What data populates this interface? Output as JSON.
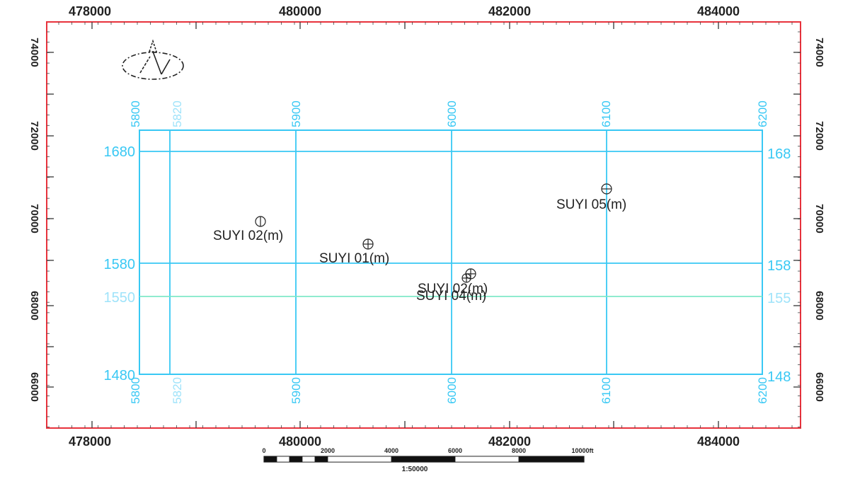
{
  "map": {
    "x_axis": {
      "ticks": [
        "478000",
        "480000",
        "482000",
        "484000"
      ],
      "values": [
        478000,
        480000,
        482000,
        484000
      ]
    },
    "y_axis": {
      "ticks": [
        "66000",
        "68000",
        "70000",
        "72000",
        "74000"
      ],
      "values": [
        66000,
        68000,
        70000,
        72000,
        74000
      ]
    },
    "survey": {
      "crosslines": {
        "values": [
          5800,
          5820,
          5900,
          6000,
          6100,
          6200
        ],
        "labels": [
          "5800",
          "5820",
          "5900",
          "6000",
          "6100",
          "6200"
        ]
      },
      "inlines": {
        "left_labels": [
          "1680",
          "1580",
          "1550",
          "1480"
        ],
        "right_labels": [
          "168",
          "158",
          "155",
          "148"
        ]
      }
    },
    "wells": [
      {
        "name": "SUYI 02(m)",
        "symbol": "circle-vertical"
      },
      {
        "name": "SUYI 01(m)",
        "symbol": "circle-cross"
      },
      {
        "name": "SUYI 05(m)",
        "symbol": "circle-horizontal"
      },
      {
        "name": "SUYI 02(m)",
        "symbol": "circle-cross"
      },
      {
        "name": "SUYI 04(m)",
        "symbol": "circle-cross"
      }
    ],
    "scale_bar": {
      "tick_labels": [
        "0",
        "2000",
        "4000",
        "6000",
        "8000",
        "10000ft"
      ],
      "ratio": "1:50000"
    },
    "colors": {
      "frame": "#e8323c",
      "survey": "#38c8f4",
      "survey_pale": "#9fe3fa",
      "inline_1550": "#7fe8c8",
      "text": "#222222"
    }
  }
}
